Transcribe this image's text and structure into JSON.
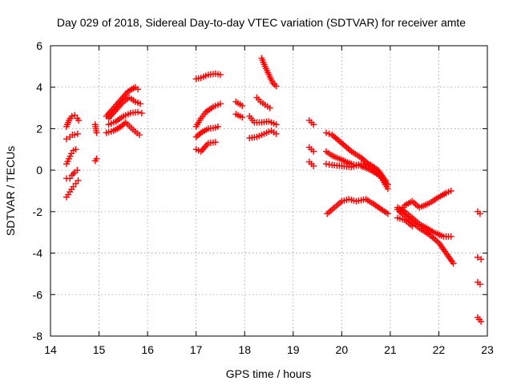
{
  "chart_data": {
    "type": "scatter",
    "title": "Day 029 of 2018, Sidereal Day-to-day VTEC variation (SDTVAR) for receiver amte",
    "xlabel": "GPS time / hours",
    "ylabel": "SDTVAR / TECUs",
    "xlim": [
      14,
      23
    ],
    "ylim": [
      -8,
      6
    ],
    "xticks": [
      "14",
      "15",
      "16",
      "17",
      "18",
      "19",
      "20",
      "21",
      "22",
      "23"
    ],
    "yticks": [
      "-8",
      "-6",
      "-4",
      "-2",
      "0",
      "2",
      "4",
      "6"
    ],
    "grid": true,
    "marker": "plus",
    "color": "#ff0000",
    "series": [
      {
        "x": [
          14.33,
          14.38,
          14.44,
          14.5,
          14.55,
          14.58
        ],
        "y": [
          2.1,
          2.4,
          2.6,
          2.65,
          2.5,
          2.4
        ]
      },
      {
        "x": [
          14.33,
          14.4,
          14.45,
          14.5,
          14.56
        ],
        "y": [
          1.5,
          1.6,
          1.7,
          1.7,
          1.75
        ]
      },
      {
        "x": [
          14.33,
          14.38,
          14.43,
          14.47,
          14.52
        ],
        "y": [
          0.3,
          0.55,
          0.8,
          0.95,
          1.0
        ]
      },
      {
        "x": [
          14.33,
          14.4,
          14.44,
          14.5,
          14.55
        ],
        "y": [
          -0.4,
          -0.4,
          -0.25,
          -0.1,
          0.0
        ]
      },
      {
        "x": [
          14.33,
          14.4,
          14.47,
          14.52,
          14.57
        ],
        "y": [
          -1.3,
          -1.05,
          -0.8,
          -0.65,
          -0.5
        ]
      },
      {
        "x": [
          14.92,
          14.95
        ],
        "y": [
          2.2,
          1.8
        ]
      },
      {
        "x": [
          14.92,
          14.95
        ],
        "y": [
          0.45,
          0.55
        ]
      },
      {
        "x": [
          15.15,
          15.3,
          15.45,
          15.6,
          15.75,
          15.8
        ],
        "y": [
          2.6,
          3.0,
          3.4,
          3.8,
          4.0,
          3.9
        ]
      },
      {
        "x": [
          15.2,
          15.35,
          15.5,
          15.62,
          15.75,
          15.85
        ],
        "y": [
          2.5,
          2.9,
          3.3,
          3.5,
          3.3,
          3.2
        ]
      },
      {
        "x": [
          15.2,
          15.35,
          15.5,
          15.65,
          15.8,
          15.88
        ],
        "y": [
          2.2,
          2.35,
          2.6,
          2.75,
          2.8,
          2.75
        ]
      },
      {
        "x": [
          15.15,
          15.3,
          15.45,
          15.55,
          15.7,
          15.83
        ],
        "y": [
          1.8,
          1.9,
          2.1,
          2.3,
          1.95,
          1.7
        ]
      },
      {
        "x": [
          17.0,
          17.1,
          17.25,
          17.4,
          17.5
        ],
        "y": [
          4.4,
          4.45,
          4.6,
          4.65,
          4.6
        ]
      },
      {
        "x": [
          17.0,
          17.1,
          17.2,
          17.35,
          17.5
        ],
        "y": [
          2.1,
          2.5,
          2.8,
          3.05,
          3.2
        ]
      },
      {
        "x": [
          17.0,
          17.1,
          17.25,
          17.4,
          17.45
        ],
        "y": [
          1.6,
          1.8,
          2.0,
          2.05,
          2.1
        ]
      },
      {
        "x": [
          17.0,
          17.1,
          17.25,
          17.4
        ],
        "y": [
          1.0,
          0.9,
          1.3,
          1.35
        ]
      },
      {
        "x": [
          17.82,
          17.95
        ],
        "y": [
          3.3,
          3.1
        ]
      },
      {
        "x": [
          17.82,
          17.95
        ],
        "y": [
          2.7,
          2.55
        ]
      },
      {
        "x": [
          18.1,
          18.2,
          18.35,
          18.5,
          18.65
        ],
        "y": [
          2.6,
          2.3,
          2.3,
          2.35,
          2.2
        ]
      },
      {
        "x": [
          18.1,
          18.25,
          18.4,
          18.55,
          18.65
        ],
        "y": [
          1.55,
          1.6,
          1.75,
          1.9,
          1.75
        ]
      },
      {
        "x": [
          18.35,
          18.42,
          18.5,
          18.58,
          18.65
        ],
        "y": [
          5.4,
          5.0,
          4.6,
          4.2,
          4.05
        ]
      },
      {
        "x": [
          18.25,
          18.33,
          18.42,
          18.52
        ],
        "y": [
          3.5,
          3.3,
          3.15,
          3.0
        ]
      },
      {
        "x": [
          19.33,
          19.42
        ],
        "y": [
          2.4,
          2.2
        ]
      },
      {
        "x": [
          19.33,
          19.42
        ],
        "y": [
          1.1,
          0.9
        ]
      },
      {
        "x": [
          19.33,
          19.42
        ],
        "y": [
          0.4,
          0.2
        ]
      },
      {
        "x": [
          19.68,
          19.8,
          20.0,
          20.2,
          20.4,
          20.6,
          20.8,
          20.95
        ],
        "y": [
          1.8,
          1.7,
          1.3,
          0.9,
          0.6,
          0.2,
          -0.3,
          -0.9
        ]
      },
      {
        "x": [
          19.68,
          19.8,
          20.0,
          20.2,
          20.4,
          20.6,
          20.8,
          20.95
        ],
        "y": [
          0.9,
          0.7,
          0.5,
          0.3,
          0.2,
          0.0,
          -0.3,
          -0.7
        ]
      },
      {
        "x": [
          19.68,
          19.8,
          20.0,
          20.2,
          20.4,
          20.6,
          20.75,
          20.9
        ],
        "y": [
          0.3,
          0.25,
          0.2,
          0.15,
          0.3,
          0.25,
          0.0,
          -0.5
        ]
      },
      {
        "x": [
          19.7,
          19.85,
          20.0,
          20.15,
          20.3,
          20.5,
          20.7,
          20.95
        ],
        "y": [
          -2.1,
          -1.8,
          -1.5,
          -1.4,
          -1.5,
          -1.4,
          -1.7,
          -2.1
        ]
      },
      {
        "x": [
          21.2,
          21.3,
          21.45,
          21.6,
          21.8,
          22.0,
          22.15,
          22.25
        ],
        "y": [
          -2.0,
          -1.7,
          -1.5,
          -1.8,
          -1.6,
          -1.3,
          -1.1,
          -1.0
        ]
      },
      {
        "x": [
          21.15,
          21.3,
          21.45,
          21.6,
          21.75,
          21.9,
          22.1,
          22.25
        ],
        "y": [
          -1.8,
          -2.0,
          -2.3,
          -2.6,
          -2.8,
          -3.0,
          -3.2,
          -3.2
        ]
      },
      {
        "x": [
          21.15,
          21.3,
          21.45,
          21.6,
          21.8,
          22.0,
          22.15,
          22.3
        ],
        "y": [
          -1.9,
          -2.2,
          -2.5,
          -2.8,
          -3.1,
          -3.5,
          -4.0,
          -4.5
        ]
      },
      {
        "x": [
          21.15,
          21.3,
          21.45
        ],
        "y": [
          -2.3,
          -2.4,
          -2.7
        ]
      },
      {
        "x": [
          22.8,
          22.85
        ],
        "y": [
          -2.0,
          -2.1
        ]
      },
      {
        "x": [
          22.8,
          22.87
        ],
        "y": [
          -4.2,
          -4.3
        ]
      },
      {
        "x": [
          22.8,
          22.85
        ],
        "y": [
          -5.4,
          -5.5
        ]
      },
      {
        "x": [
          22.8,
          22.87
        ],
        "y": [
          -7.1,
          -7.3
        ]
      }
    ]
  }
}
